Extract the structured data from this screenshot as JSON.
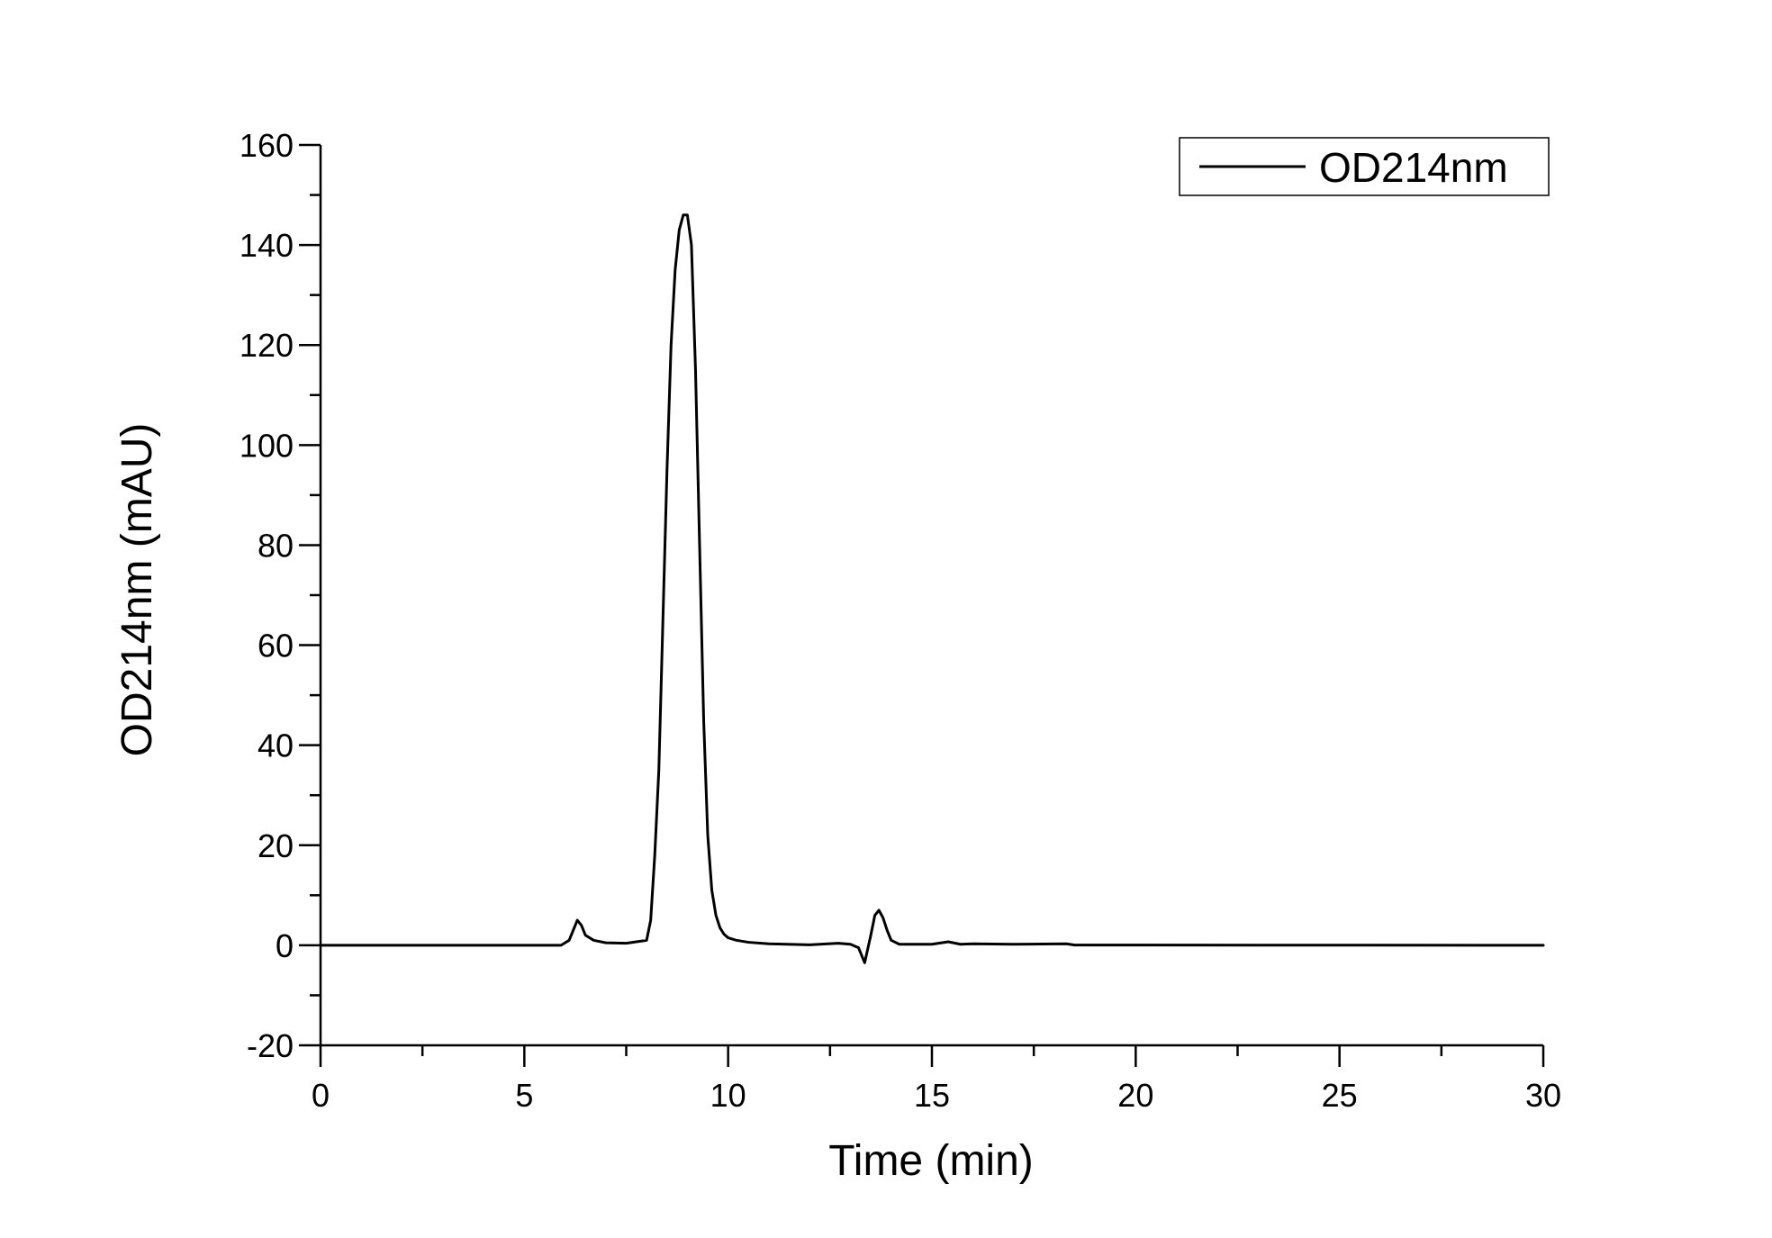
{
  "chart_data": {
    "type": "line",
    "title": "",
    "xlabel": "Time (min)",
    "ylabel": "OD214nm (mAU)",
    "xlim": [
      0,
      30
    ],
    "ylim": [
      -20,
      160
    ],
    "xticks": [
      0,
      5,
      10,
      15,
      20,
      25,
      30
    ],
    "yticks": [
      -20,
      0,
      20,
      40,
      60,
      80,
      100,
      120,
      140,
      160
    ],
    "xtick_labels": [
      "0",
      "5",
      "10",
      "15",
      "20",
      "25",
      "30"
    ],
    "ytick_labels": [
      "-20",
      "0",
      "20",
      "40",
      "60",
      "80",
      "100",
      "120",
      "140",
      "160"
    ],
    "grid": false,
    "legend_position": "top-right",
    "series": [
      {
        "name": "OD214nm",
        "color": "#000000",
        "x": [
          0,
          5.9,
          6.1,
          6.2,
          6.3,
          6.4,
          6.5,
          6.7,
          7.0,
          7.5,
          8.0,
          8.1,
          8.2,
          8.3,
          8.4,
          8.5,
          8.6,
          8.7,
          8.8,
          8.9,
          9.0,
          9.1,
          9.2,
          9.3,
          9.4,
          9.5,
          9.6,
          9.7,
          9.8,
          9.9,
          10.0,
          10.2,
          10.5,
          11.0,
          12.0,
          12.7,
          13.0,
          13.2,
          13.35,
          13.5,
          13.6,
          13.7,
          13.8,
          13.9,
          14.0,
          14.2,
          14.5,
          15.0,
          15.4,
          15.7,
          16.0,
          17.0,
          18.3,
          18.5,
          30.0
        ],
        "y": [
          0,
          0,
          1.0,
          3.0,
          5.0,
          4.0,
          2.0,
          1.0,
          0.5,
          0.4,
          1.0,
          5.0,
          18.0,
          35.0,
          65.0,
          95.0,
          120.0,
          135.0,
          143.0,
          146.0,
          146.0,
          140.0,
          115.0,
          80.0,
          45.0,
          22.0,
          11.0,
          6.0,
          3.5,
          2.2,
          1.5,
          1.0,
          0.6,
          0.3,
          0.1,
          0.4,
          0.2,
          -0.5,
          -3.5,
          2.0,
          6.0,
          7.0,
          5.5,
          3.0,
          1.0,
          0.2,
          0.2,
          0.2,
          0.7,
          0.2,
          0.3,
          0.2,
          0.3,
          0.05,
          0
        ]
      }
    ]
  }
}
